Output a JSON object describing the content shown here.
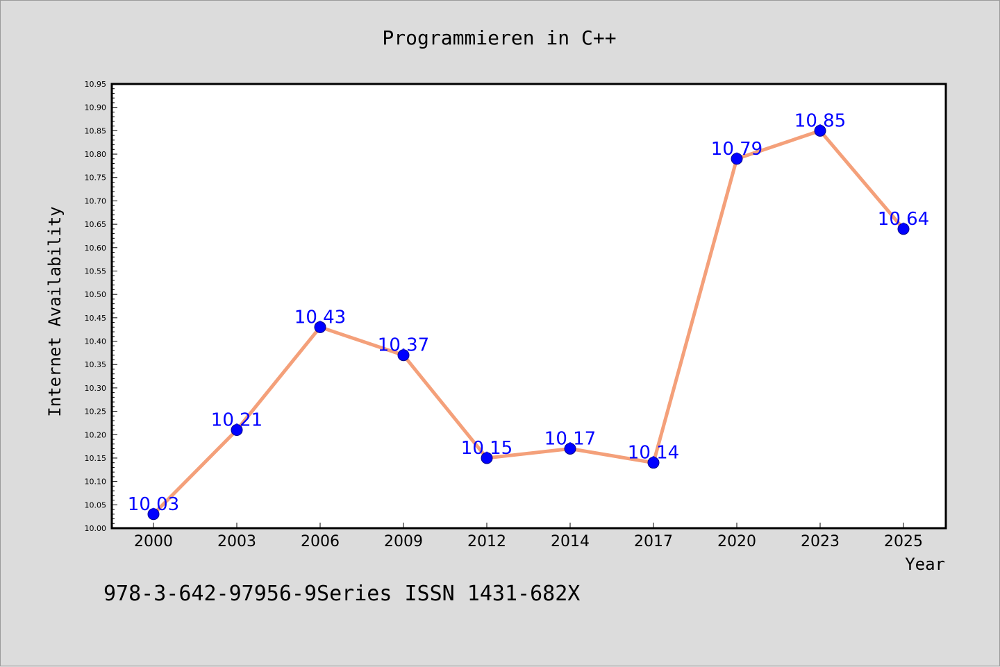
{
  "chart_data": {
    "type": "line",
    "title": "Programmieren in C++",
    "xlabel": "Year",
    "ylabel": "Internet Availability",
    "categories": [
      "2000",
      "2003",
      "2006",
      "2009",
      "2012",
      "2014",
      "2017",
      "2020",
      "2023",
      "2025"
    ],
    "values": [
      10.03,
      10.21,
      10.43,
      10.37,
      10.15,
      10.17,
      10.14,
      10.79,
      10.85,
      10.64
    ],
    "data_labels": [
      "10.03",
      "10.21",
      "10.43",
      "10.37",
      "10.15",
      "10.17",
      "10.14",
      "10.79",
      "10.85",
      "10.64"
    ],
    "ylim": [
      10.0,
      10.95
    ],
    "yticks": [
      "10.00",
      "10.05",
      "10.10",
      "10.15",
      "10.20",
      "10.25",
      "10.30",
      "10.35",
      "10.40",
      "10.45",
      "10.50",
      "10.55",
      "10.60",
      "10.65",
      "10.70",
      "10.75",
      "10.80",
      "10.85",
      "10.90",
      "10.95"
    ],
    "grid": false,
    "legend": "none",
    "line_color": "#f4a07a",
    "marker_color": "#0000ff",
    "label_color": "#0000ff"
  },
  "footer_text": "978-3-642-97956-9Series ISSN 1431-682X"
}
